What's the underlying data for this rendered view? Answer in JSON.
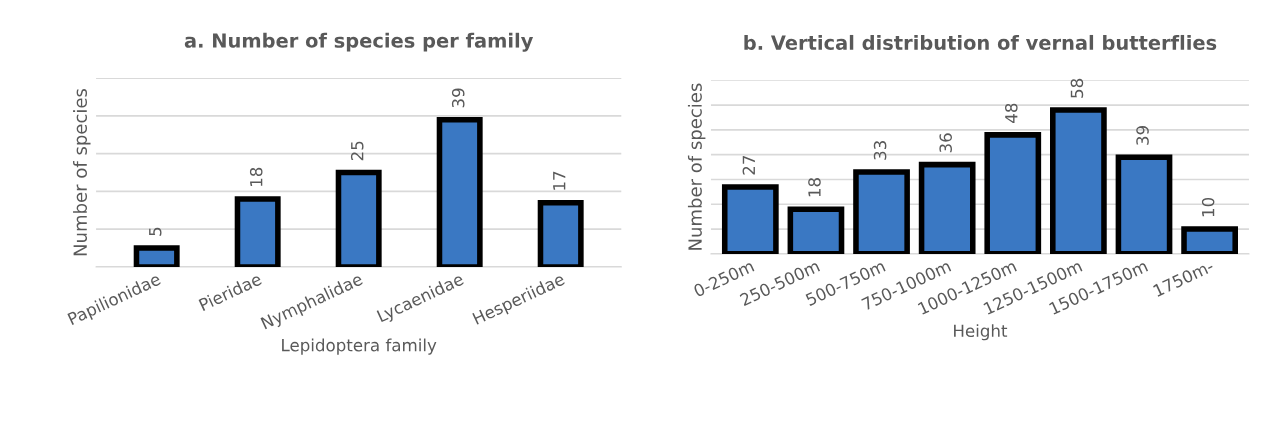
{
  "chart_data": [
    {
      "type": "bar",
      "title": "a. Number of species per family",
      "xlabel": "Lepidoptera family",
      "ylabel": "Number of species",
      "categories": [
        "Papilionidae",
        "Pieridae",
        "Nymphalidae",
        "Lycaenidae",
        "Hesperiidae"
      ],
      "values": [
        5,
        18,
        25,
        39,
        17
      ],
      "color": "#3a78c3",
      "ylim": [
        0,
        50
      ],
      "yticks": [
        {
          "value": 0,
          "label": null
        },
        {
          "value": 10,
          "label": null
        },
        {
          "value": 20,
          "label": null
        },
        {
          "value": 30,
          "label": null
        },
        {
          "value": 40,
          "label": null
        },
        {
          "value": 50,
          "label": null
        }
      ],
      "grid": "y",
      "tick_labels": "x",
      "data_labels": true
    },
    {
      "type": "bar",
      "title": "b. Vertical distribution of vernal butterflies",
      "xlabel": "Height",
      "ylabel": "Number of species",
      "categories": [
        "0-250m",
        "250-500m",
        "500-750m",
        "750-1000m",
        "1000-1250m",
        "1250-1500m",
        "1500-1750m",
        "1750m-"
      ],
      "values": [
        27,
        18,
        33,
        36,
        48,
        58,
        39,
        10
      ],
      "color": "#3a78c3",
      "ylim": [
        0,
        70
      ],
      "yticks": [
        {
          "value": 0,
          "label": null
        },
        {
          "value": 10,
          "label": null
        },
        {
          "value": 20,
          "label": null
        },
        {
          "value": 30,
          "label": null
        },
        {
          "value": 40,
          "label": null
        },
        {
          "value": 50,
          "label": null
        },
        {
          "value": 60,
          "label": null
        },
        {
          "value": 70,
          "label": null
        }
      ],
      "grid": "y",
      "tick_labels": "x",
      "data_labels": true
    }
  ]
}
